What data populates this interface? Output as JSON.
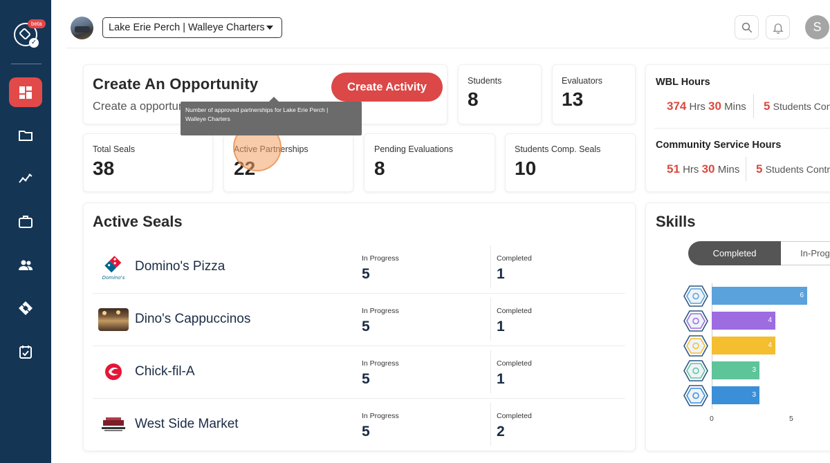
{
  "sidebar": {
    "beta_label": "beta",
    "items": [
      {
        "name": "dashboard",
        "icon": "dashboard-icon",
        "active": true
      },
      {
        "name": "folder",
        "icon": "folder-icon",
        "active": false
      },
      {
        "name": "analytics",
        "icon": "chart-line-icon",
        "active": false
      },
      {
        "name": "opportunities",
        "icon": "briefcase-icon",
        "active": false
      },
      {
        "name": "people",
        "icon": "people-icon",
        "active": false
      },
      {
        "name": "seals",
        "icon": "seal-icon",
        "active": false
      },
      {
        "name": "calendar",
        "icon": "calendar-check-icon",
        "active": false
      }
    ]
  },
  "header": {
    "org_name": "Lake Erie Perch | Walleye Charters",
    "user_initial": "S"
  },
  "opportunity": {
    "title": "Create An Opportunity",
    "subtitle": "Create a opportun",
    "button_label": "Create Activity"
  },
  "stats": {
    "students": {
      "label": "Students",
      "value": "8"
    },
    "evaluators": {
      "label": "Evaluators",
      "value": "13"
    },
    "total_seals": {
      "label": "Total Seals",
      "value": "38"
    },
    "active_partnerships": {
      "label": "Active Partnerships",
      "value": "22"
    },
    "pending_evaluations": {
      "label": "Pending Evaluations",
      "value": "8"
    },
    "students_comp_seals": {
      "label": "Students Comp. Seals",
      "value": "10"
    }
  },
  "tooltip": {
    "line1": "Number of approved partnerships for Lake Erie Perch |",
    "line2": "Walleye Charters"
  },
  "wbl": {
    "title": "WBL Hours",
    "hours": "374",
    "hrs_label": "Hrs",
    "mins": "30",
    "mins_label": "Mins",
    "students": "5",
    "students_label": "Students Con"
  },
  "community": {
    "title": "Community Service Hours",
    "hours": "51",
    "hrs_label": "Hrs",
    "mins": "30",
    "mins_label": "Mins",
    "students": "5",
    "students_label": "Students Contr"
  },
  "active_seals": {
    "title": "Active Seals",
    "in_progress_label": "In Progress",
    "completed_label": "Completed",
    "rows": [
      {
        "name": "Domino's Pizza",
        "logo": "dominos-logo",
        "in_progress": "5",
        "completed": "1"
      },
      {
        "name": "Dino's Cappuccinos",
        "logo": "cafe-photo",
        "in_progress": "5",
        "completed": "1"
      },
      {
        "name": "Chick-fil-A",
        "logo": "chickfila-logo",
        "in_progress": "5",
        "completed": "1"
      },
      {
        "name": "West Side Market",
        "logo": "westside-market-logo",
        "in_progress": "5",
        "completed": "2"
      }
    ]
  },
  "skills": {
    "title": "Skills",
    "tabs": [
      "Completed",
      "In-Prog"
    ],
    "selected_tab": "Completed"
  },
  "chart_data": {
    "type": "bar",
    "orientation": "horizontal",
    "categories": [
      "teamwork-icon",
      "time-management-icon",
      "reliability-icon",
      "growth-icon",
      "ethics-icon"
    ],
    "values": [
      6,
      4,
      4,
      3,
      3
    ],
    "colors": [
      "#5aa2dc",
      "#9d6ce0",
      "#f5be2f",
      "#5ec49a",
      "#3a8fd8"
    ],
    "xlim": [
      0,
      10
    ],
    "x_ticks": [
      "0",
      "5"
    ]
  }
}
